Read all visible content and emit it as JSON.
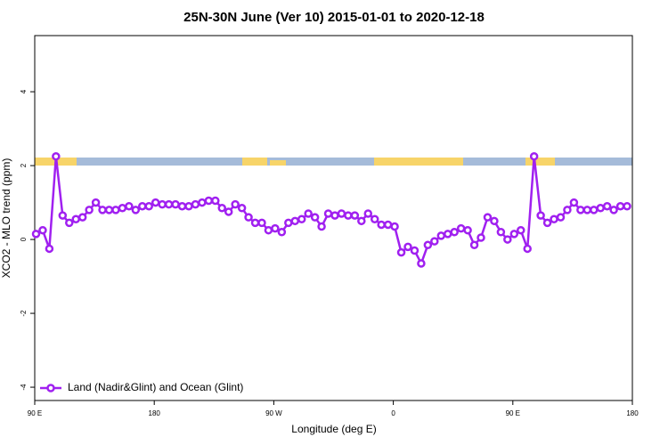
{
  "chart_data": {
    "type": "line",
    "title": "25N-30N June (Ver 10)   2015-01-01 to 2020-12-18",
    "x_label": "Longitude (deg E)",
    "y_label": "XCO2 - MLO trend (ppm)",
    "xlim": [
      90,
      540
    ],
    "ylim": [
      -4.36,
      5.52
    ],
    "xticks": [
      {
        "value": 90,
        "label": "90 E"
      },
      180,
      {
        "value": 270,
        "label": "90 W"
      },
      {
        "value": 360,
        "label": "0"
      },
      {
        "value": 450,
        "label": "90 E"
      },
      {
        "value": 540,
        "label": "180"
      }
    ],
    "yticks": [
      -4,
      -2,
      0,
      2,
      4
    ],
    "grid": false,
    "legend": "bottom-left",
    "x": [
      91,
      96,
      101,
      106,
      111,
      116,
      121,
      126,
      131,
      136,
      141,
      146,
      151,
      156,
      161,
      166,
      171,
      176,
      181,
      186,
      191,
      196,
      201,
      206,
      211,
      216,
      221,
      226,
      231,
      236,
      241,
      246,
      251,
      256,
      261,
      266,
      271,
      276,
      281,
      286,
      291,
      296,
      301,
      306,
      311,
      316,
      321,
      326,
      331,
      336,
      341,
      346,
      351,
      356,
      361,
      366,
      371,
      376,
      381,
      386,
      391,
      396,
      401,
      406,
      411,
      416,
      421,
      426,
      431,
      436,
      441,
      446,
      451,
      456,
      461,
      466,
      471,
      476,
      481,
      486,
      491,
      496,
      501,
      506,
      511,
      516,
      521,
      526,
      531,
      536
    ],
    "series": [
      {
        "name": "Land (Nadir&Glint) and Ocean (Glint)",
        "color": "#a020f0",
        "values": [
          0.15,
          0.25,
          -0.25,
          2.25,
          0.65,
          0.45,
          0.55,
          0.6,
          0.8,
          1.0,
          0.8,
          0.8,
          0.8,
          0.85,
          0.9,
          0.8,
          0.9,
          0.9,
          1.0,
          0.95,
          0.95,
          0.95,
          0.9,
          0.9,
          0.95,
          1.0,
          1.05,
          1.05,
          0.85,
          0.75,
          0.95,
          0.85,
          0.6,
          0.45,
          0.45,
          0.25,
          0.3,
          0.2,
          0.45,
          0.5,
          0.55,
          0.7,
          0.6,
          0.35,
          0.7,
          0.65,
          0.7,
          0.65,
          0.65,
          0.5,
          0.7,
          0.55,
          0.4,
          0.4,
          0.35,
          -0.35,
          -0.2,
          -0.3,
          -0.65,
          -0.15,
          -0.05,
          0.1,
          0.15,
          0.2,
          0.3,
          0.25,
          -0.15,
          0.05,
          0.6,
          0.5,
          0.2,
          0.0,
          0.15,
          0.25,
          -0.25,
          2.25,
          0.65,
          0.45,
          0.55,
          0.6,
          0.8,
          1.0,
          0.8,
          0.8,
          0.8,
          0.85,
          0.9,
          0.8,
          0.9,
          0.9
        ]
      }
    ]
  }
}
